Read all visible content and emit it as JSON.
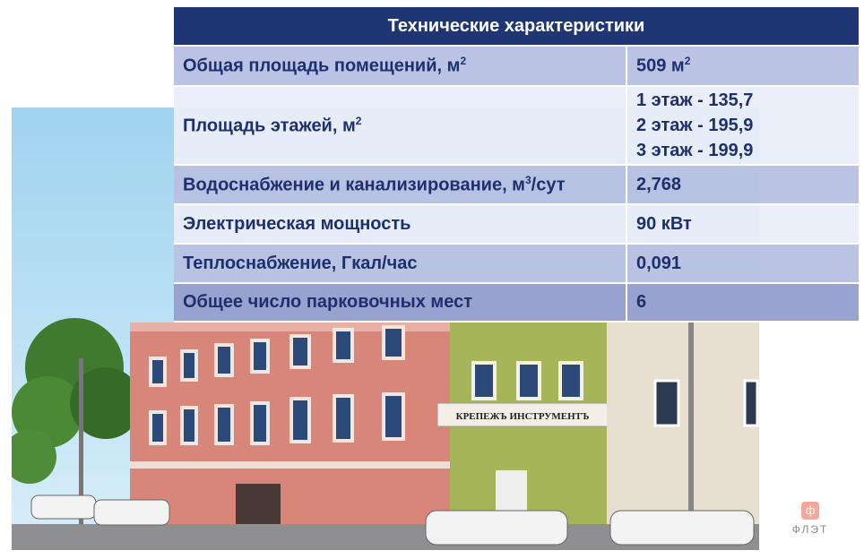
{
  "table": {
    "title": "Технические характеристики",
    "rows": [
      {
        "label": "Общая площадь помещений, м",
        "sup": "2",
        "value": "509 м",
        "value_sup": "2"
      },
      {
        "label": "Площадь этажей, м",
        "sup": "2",
        "lines": [
          "1 этаж - 135,7",
          "2 этаж - 195,9",
          "3 этаж - 199,9"
        ]
      },
      {
        "label": "Водоснабжение и канализирование, м",
        "sup": "3",
        "suffix": "/сут",
        "value": "2,768"
      },
      {
        "label": "Электрическая мощность",
        "value": "90 кВт"
      },
      {
        "label": "Теплоснабжение, Гкал/час",
        "value": "0,091"
      },
      {
        "label": "Общее число парковочных мест",
        "value": "6"
      }
    ]
  },
  "photo": {
    "sign": "КРЕПЕЖЪ ИНСТРУМЕНТЪ"
  },
  "logo": {
    "glyph": "ф",
    "text": "ФЛЭТ",
    "color": "#f5a89a"
  },
  "colors": {
    "header": "#1f3675",
    "text": "#1e2f6e"
  }
}
